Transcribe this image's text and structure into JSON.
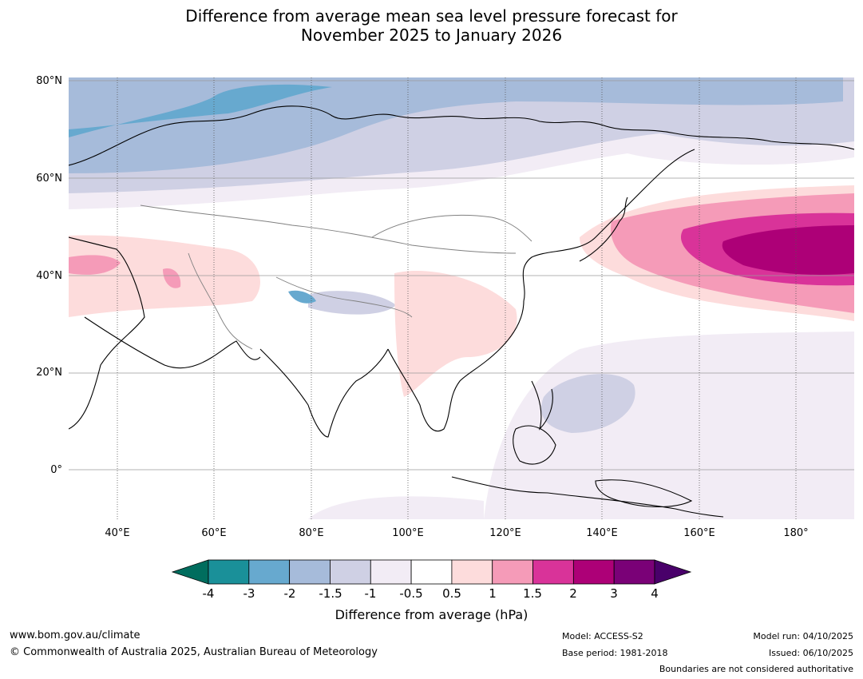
{
  "title": {
    "line1": "Difference from average mean sea level pressure forecast for",
    "line2": "November 2025 to January 2026"
  },
  "map": {
    "projection": "plate-carree",
    "lat_labels": [
      "80°N",
      "60°N",
      "40°N",
      "20°N",
      "0°"
    ],
    "lon_labels": [
      "40°E",
      "60°E",
      "80°E",
      "100°E",
      "120°E",
      "140°E",
      "160°E",
      "180°"
    ],
    "extent": {
      "lon_min": 30,
      "lon_max": 192,
      "lat_min": -10,
      "lat_max": 81
    }
  },
  "colorbar": {
    "ticks": [
      "-4",
      "-3",
      "-2",
      "-1.5",
      "-1",
      "-0.5",
      "0.5",
      "1",
      "1.5",
      "2",
      "3",
      "4"
    ],
    "label": "Difference from average (hPa)",
    "colors": {
      "below_min": "#006d5e",
      "bins": [
        "#1a9099",
        "#67a9cf",
        "#a6bbda",
        "#cfd0e4",
        "#f2ecf5",
        "#ffffff",
        "#fddcdc",
        "#f59bb8",
        "#d93399",
        "#ad0077",
        "#7a0177"
      ],
      "above_max": "#49006a"
    }
  },
  "footer": {
    "website": "www.bom.gov.au/climate",
    "copyright": "© Commonwealth of Australia 2025, Australian Bureau of Meteorology",
    "model": "Model: ACCESS-S2",
    "base_period": "Base period: 1981-2018",
    "model_run": "Model run: 04/10/2025",
    "issued": "Issued: 06/10/2025",
    "disclaimer": "Boundaries are not considered authoritative"
  }
}
